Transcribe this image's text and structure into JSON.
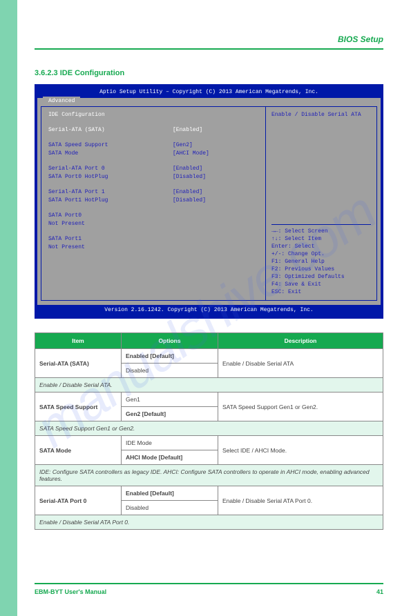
{
  "page": {
    "title": "BIOS Setup",
    "sectionHeading": "3.6.2.3 IDE Configuration",
    "footerLeft": "EBM-BYT User's Manual",
    "footerRight": "41",
    "watermark": "manualshive.com"
  },
  "bios": {
    "header": "Aptio Setup Utility – Copyright (C) 2013 American Megatrends, Inc.",
    "tab": "Advanced",
    "left": {
      "heading": "IDE Configuration",
      "rows": [
        {
          "label": "Serial-ATA (SATA)",
          "value": "[Enabled]",
          "selected": true,
          "gapBefore": true
        },
        {
          "label": "SATA Speed Support",
          "value": "[Gen2]",
          "gapBefore": true
        },
        {
          "label": "SATA Mode",
          "value": "[AHCI Mode]"
        },
        {
          "label": "Serial-ATA Port 0",
          "value": "[Enabled]",
          "gapBefore": true
        },
        {
          "label": "SATA Port0 HotPlug",
          "value": "[Disabled]"
        },
        {
          "label": "Serial-ATA Port 1",
          "value": "[Enabled]",
          "gapBefore": true
        },
        {
          "label": "SATA Port1 HotPlug",
          "value": "[Disabled]"
        },
        {
          "label": "SATA Port0",
          "value": "",
          "gapBefore": true
        },
        {
          "label": "Not Present",
          "value": ""
        },
        {
          "label": "SATA Port1",
          "value": "",
          "gapBefore": true
        },
        {
          "label": "Not Present",
          "value": ""
        }
      ]
    },
    "right": {
      "help": "Enable / Disable Serial ATA",
      "nav": [
        "→←: Select Screen",
        "↑↓: Select Item",
        "Enter: Select",
        "+/-: Change Opt.",
        "F1: General Help",
        "F2: Previous Values",
        "F3: Optimized Defaults",
        "F4: Save & Exit",
        "ESC: Exit"
      ]
    },
    "footer": "Version 2.16.1242. Copyright (C) 2013 American Megatrends, Inc."
  },
  "table": {
    "headers": [
      "Item",
      "Options",
      "Description"
    ],
    "groups": [
      {
        "name": "Serial-ATA (SATA)",
        "options": [
          "Enabled [Default]",
          "Disabled"
        ],
        "desc": "Enable / Disable Serial ATA",
        "longDesc": "Enable / Disable Serial ATA."
      },
      {
        "name": "SATA Speed Support",
        "options": [
          "Gen1",
          "Gen2 [Default]"
        ],
        "desc": "SATA Speed Support Gen1 or Gen2.",
        "longDesc": "SATA Speed Support Gen1 or Gen2."
      },
      {
        "name": "SATA Mode",
        "options": [
          "IDE Mode",
          "AHCI Mode [Default]"
        ],
        "desc": "Select IDE / AHCI Mode.",
        "longDesc": "IDE: Configure SATA controllers as legacy IDE. AHCI: Configure SATA controllers to operate in AHCI mode, enabling advanced features."
      },
      {
        "name": "Serial-ATA Port 0",
        "options": [
          "Enabled [Default]",
          "Disabled"
        ],
        "desc": "Enable / Disable Serial ATA Port 0.",
        "longDesc": "Enable / Disable Serial ATA Port 0."
      }
    ]
  }
}
